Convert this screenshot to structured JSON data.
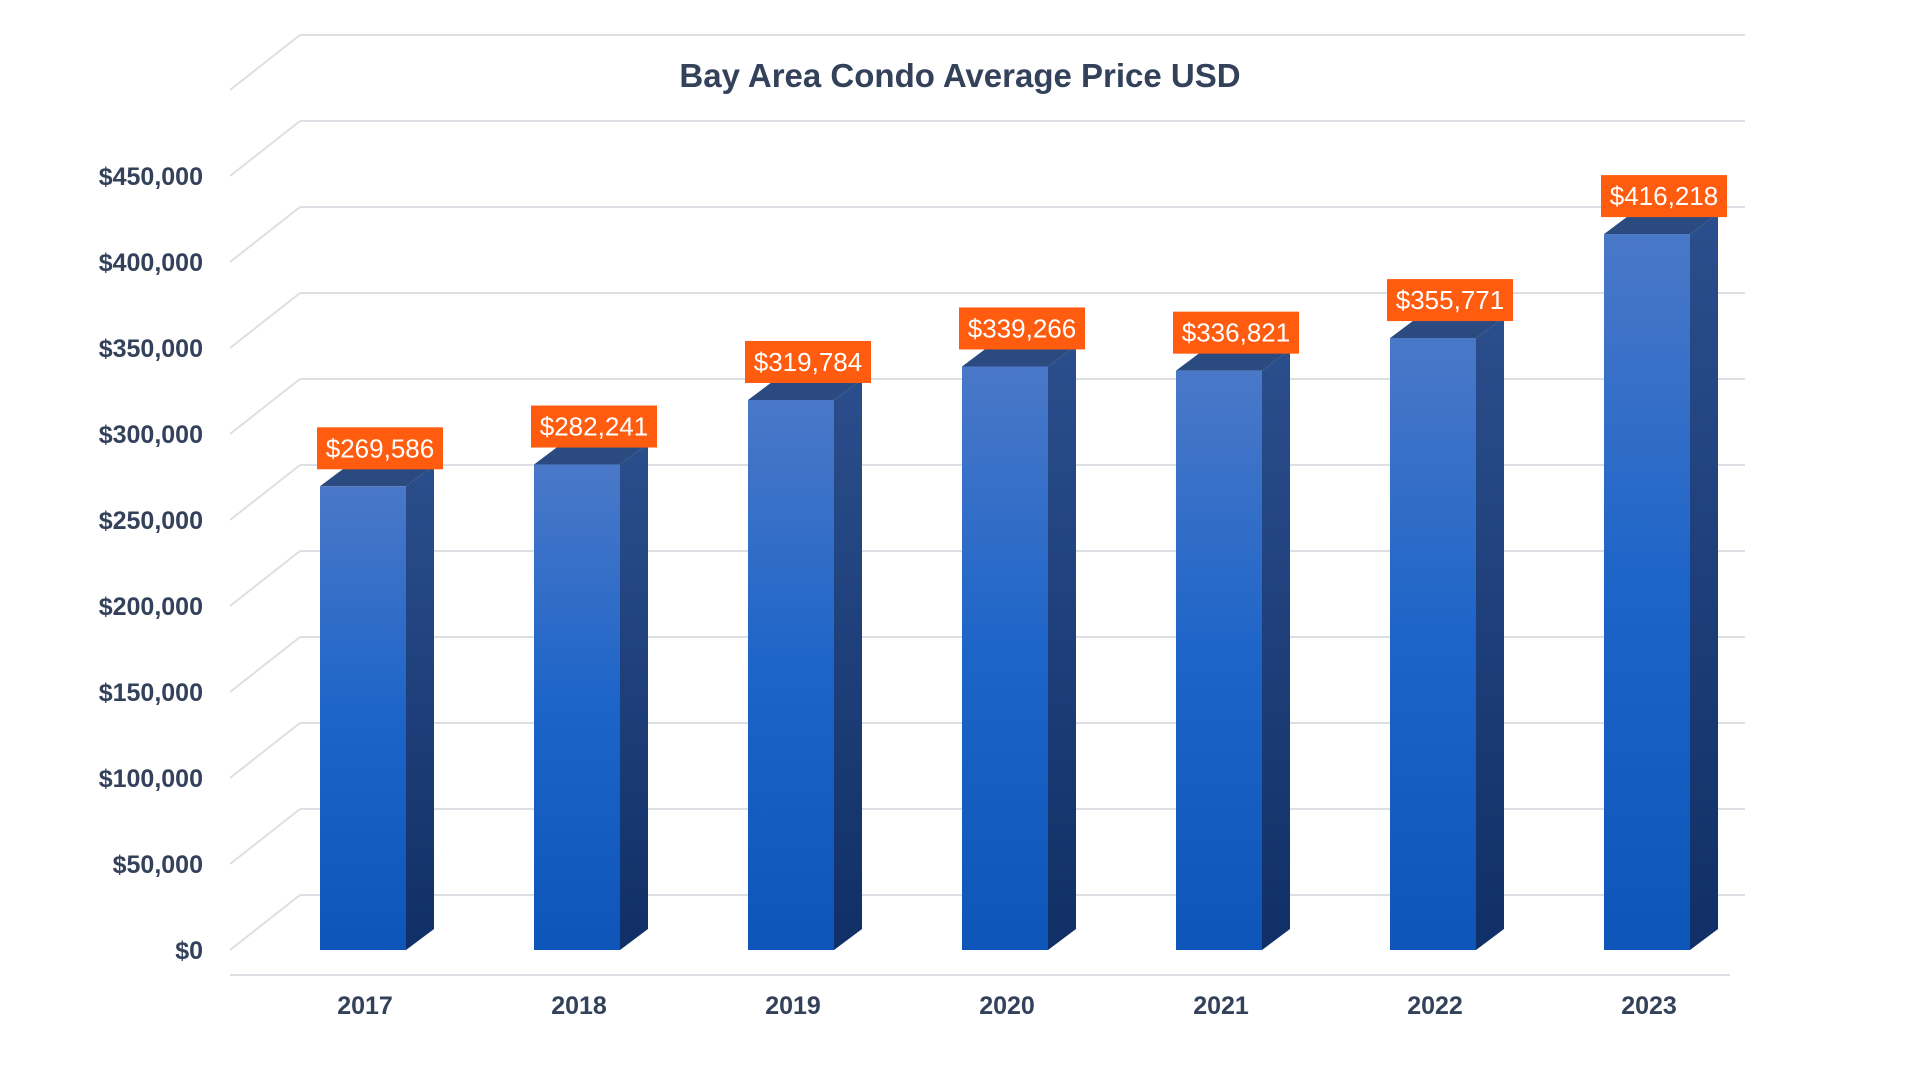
{
  "chart_data": {
    "type": "bar",
    "title": "Bay Area Condo Average Price USD",
    "categories": [
      "2017",
      "2018",
      "2019",
      "2020",
      "2021",
      "2022",
      "2023"
    ],
    "values": [
      269586,
      282241,
      319784,
      339266,
      336821,
      355771,
      416218
    ],
    "data_labels": [
      "$269,586",
      "$282,241",
      "$319,784",
      "$339,266",
      "$336,821",
      "$355,771",
      "$416,218"
    ],
    "y_ticks": [
      0,
      50000,
      100000,
      150000,
      200000,
      250000,
      300000,
      350000,
      400000,
      450000
    ],
    "y_tick_labels": [
      "$0",
      "$50,000",
      "$100,000",
      "$150,000",
      "$200,000",
      "$250,000",
      "$300,000",
      "$350,000",
      "$400,000",
      "$450,000"
    ],
    "ylim": [
      0,
      500000
    ],
    "xlabel": "",
    "ylabel": "",
    "grid": true,
    "legend": "none",
    "bar_style": "3d",
    "colors": {
      "bar_top": "#4a78c8",
      "bar_mid": "#1c64c8",
      "bar_bottom": "#0d55b8",
      "bar_side": "#1c3d78",
      "bar_cap": "#2b4a80",
      "label_bg": "#ff5c0f",
      "label_text": "#ffffff",
      "text": "#33415a",
      "grid": "#dcdfe4"
    }
  }
}
